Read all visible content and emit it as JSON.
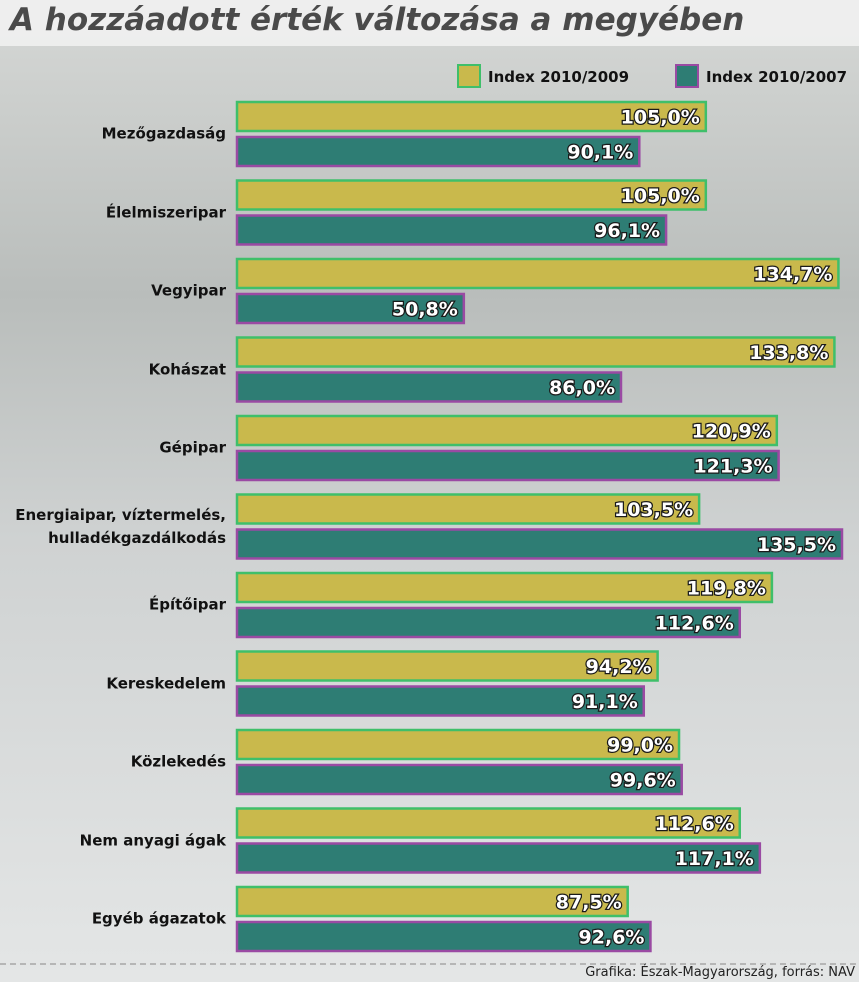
{
  "chart_data": {
    "type": "bar",
    "orientation": "horizontal",
    "title": "A hozzáadott érték változása a megyében",
    "categories": [
      "Mezőgazdaság",
      "Élelmiszeripar",
      "Vegyipar",
      "Kohászat",
      "Gépipar",
      "Energiaipar, víztermelés,\nhulladékgazdálkodás",
      "Építőipar",
      "Kereskedelem",
      "Közlekedés",
      "Nem anyagi ágak",
      "Egyéb ágazatok"
    ],
    "series": [
      {
        "name": "Index 2010/2009",
        "color": "#c9b94c",
        "border": "#3fbf6a",
        "values": [
          105.0,
          105.0,
          134.7,
          133.8,
          120.9,
          103.5,
          119.8,
          94.2,
          99.0,
          112.6,
          87.5
        ],
        "value_labels": [
          "105,0%",
          "105,0%",
          "134,7%",
          "133,8%",
          "120,9%",
          "103,5%",
          "119,8%",
          "94,2%",
          "99,0%",
          "112,6%",
          "87,5%"
        ]
      },
      {
        "name": "Index 2010/2007",
        "color": "#2e7d74",
        "border": "#9a4aa3",
        "values": [
          90.1,
          96.1,
          50.8,
          86.0,
          121.3,
          135.5,
          112.6,
          91.1,
          99.6,
          117.1,
          92.6
        ],
        "value_labels": [
          "90,1%",
          "96,1%",
          "50,8%",
          "86,0%",
          "121,3%",
          "135,5%",
          "112,6%",
          "91,1%",
          "99,6%",
          "117,1%",
          "92,6%"
        ]
      }
    ],
    "source": "Grafika: Észak-Magyarország, forrás: NAV"
  }
}
